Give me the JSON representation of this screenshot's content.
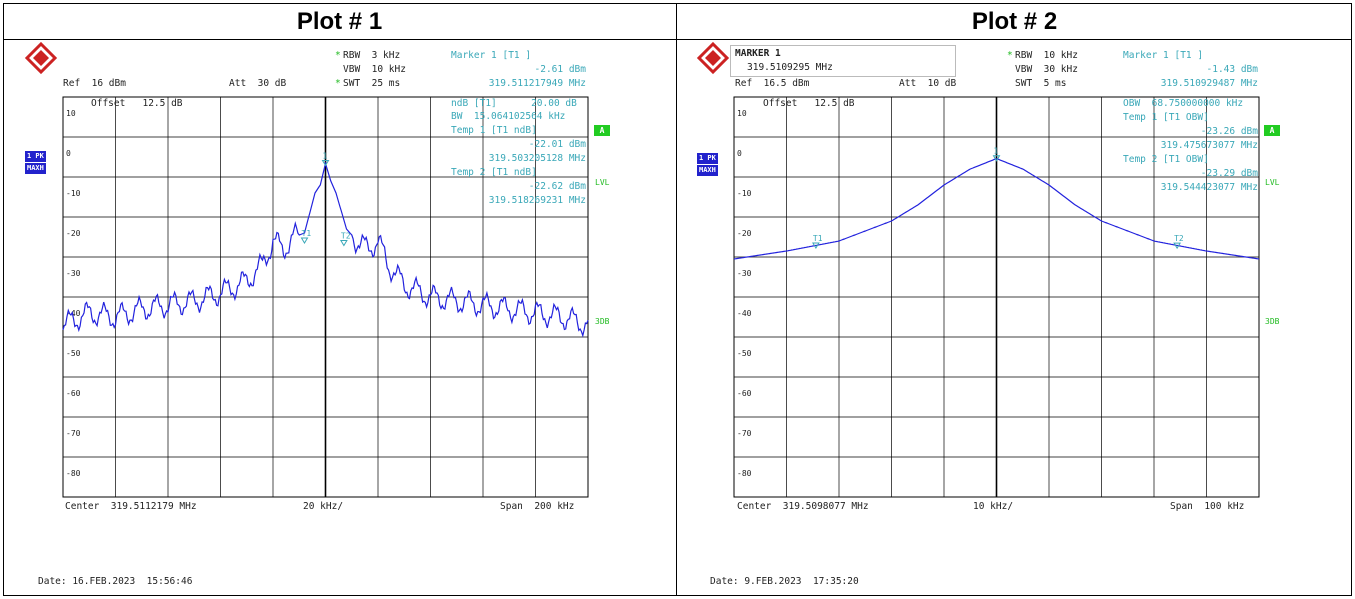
{
  "colors": {
    "trace": "#2222dd",
    "annotation": "#3aa8b8",
    "green": "#22bb22",
    "grid": "#000000"
  },
  "plots": [
    {
      "title": "Plot # 1",
      "marker_box": null,
      "rbw": "RBW  3 kHz",
      "vbw": "VBW  10 kHz",
      "swt": "SWT  25 ms",
      "marker_head": "Marker 1 [T1 ]",
      "marker_level": "-2.61 dBm",
      "marker_freq": "319.511217949 MHz",
      "ref": "Ref  16 dBm",
      "att": "Att  30 dB",
      "offset": "Offset   12.5 dB",
      "right_lines": [
        "ndB [T1]      20.00 dB",
        "BW  15.064102564 kHz",
        "Temp 1 [T1 ndB]",
        "-22.01 dBm",
        "319.503205128 MHz",
        "Temp 2 [T1 ndB]",
        "-22.62 dBm",
        "319.518269231 MHz"
      ],
      "mode1": "1 PK",
      "mode2": "MAXH",
      "a_label": "A",
      "lvl": "LVL",
      "threedb": "3DB",
      "center": "Center  319.5112179 MHz",
      "div": "20 kHz/",
      "span": "Span  200 kHz",
      "date": "Date: 16.FEB.2023  15:56:46",
      "t1": "T1",
      "t2": "T2",
      "m1": "1",
      "yticks": [
        "10",
        "0",
        "-10",
        "-20",
        "-30",
        "-40",
        "-50",
        "-60",
        "-70",
        "-80"
      ]
    },
    {
      "title": "Plot # 2",
      "marker_box": {
        "title": "MARKER 1",
        "value": "319.5109295 MHz"
      },
      "rbw": "RBW  10 kHz",
      "vbw": "VBW  30 kHz",
      "swt": "SWT  5 ms",
      "marker_head": "Marker 1 [T1 ]",
      "marker_level": "-1.43 dBm",
      "marker_freq": "319.510929487 MHz",
      "ref": "Ref  16.5 dBm",
      "att": "Att  10 dB",
      "offset": "Offset   12.5 dB",
      "right_lines": [
        "OBW  68.750000000 kHz",
        "Temp 1 [T1 OBW]",
        "-23.26 dBm",
        "319.475673077 MHz",
        "Temp 2 [T1 OBW]",
        "-23.29 dBm",
        "319.544423077 MHz"
      ],
      "mode1": "1 PK",
      "mode2": "MAXH",
      "a_label": "A",
      "lvl": "LVL",
      "threedb": "3DB",
      "center": "Center  319.5098077 MHz",
      "div": "10 kHz/",
      "span": "Span  100 kHz",
      "date": "Date: 9.FEB.2023  17:35:20",
      "t1": "T1",
      "t2": "T2",
      "m1": "1",
      "yticks": [
        "10",
        "0",
        "-10",
        "-20",
        "-30",
        "-40",
        "-50",
        "-60",
        "-70",
        "-80"
      ]
    }
  ],
  "chart_data": [
    {
      "type": "line",
      "title": "Plot # 1",
      "x_unit": "kHz offset from center 319.5112179 MHz",
      "xlim": [
        -100,
        100
      ],
      "ylim": [
        -86,
        14
      ],
      "x": [
        -100,
        -90,
        -80,
        -70,
        -60,
        -50,
        -40,
        -30,
        -24,
        -20,
        -16,
        -12,
        -8,
        -4,
        -2,
        0,
        2,
        4,
        8,
        12,
        16,
        20,
        24,
        30,
        40,
        50,
        60,
        70,
        80,
        90,
        100
      ],
      "y": [
        -43,
        -40,
        -41,
        -39,
        -38,
        -37,
        -35,
        -32,
        -28,
        -22,
        -24,
        -21,
        -20,
        -10,
        -8,
        -2.6,
        -7,
        -10,
        -19,
        -22,
        -24,
        -22,
        -28,
        -33,
        -36,
        -37,
        -38,
        -39,
        -40,
        -41,
        -43
      ],
      "markers": [
        {
          "label": "1",
          "x": 0,
          "y": -2.61
        },
        {
          "label": "T1",
          "x": -8,
          "y": -22.01
        },
        {
          "label": "T2",
          "x": 7,
          "y": -22.62
        }
      ]
    },
    {
      "type": "line",
      "title": "Plot # 2",
      "x_unit": "kHz offset from center 319.5098077 MHz",
      "xlim": [
        -50,
        50
      ],
      "ylim": [
        -86,
        14
      ],
      "x": [
        -50,
        -40,
        -30,
        -20,
        -15,
        -10,
        -5,
        0,
        5,
        10,
        15,
        20,
        30,
        40,
        50
      ],
      "y": [
        -26.5,
        -24.5,
        -22,
        -17,
        -13,
        -8,
        -4,
        -1.4,
        -4,
        -8,
        -13,
        -17,
        -22,
        -24.5,
        -26.5
      ],
      "markers": [
        {
          "label": "1",
          "x": 0,
          "y": -1.43
        },
        {
          "label": "T1",
          "x": -34.4,
          "y": -23.26
        },
        {
          "label": "T2",
          "x": 34.4,
          "y": -23.29
        }
      ]
    }
  ]
}
